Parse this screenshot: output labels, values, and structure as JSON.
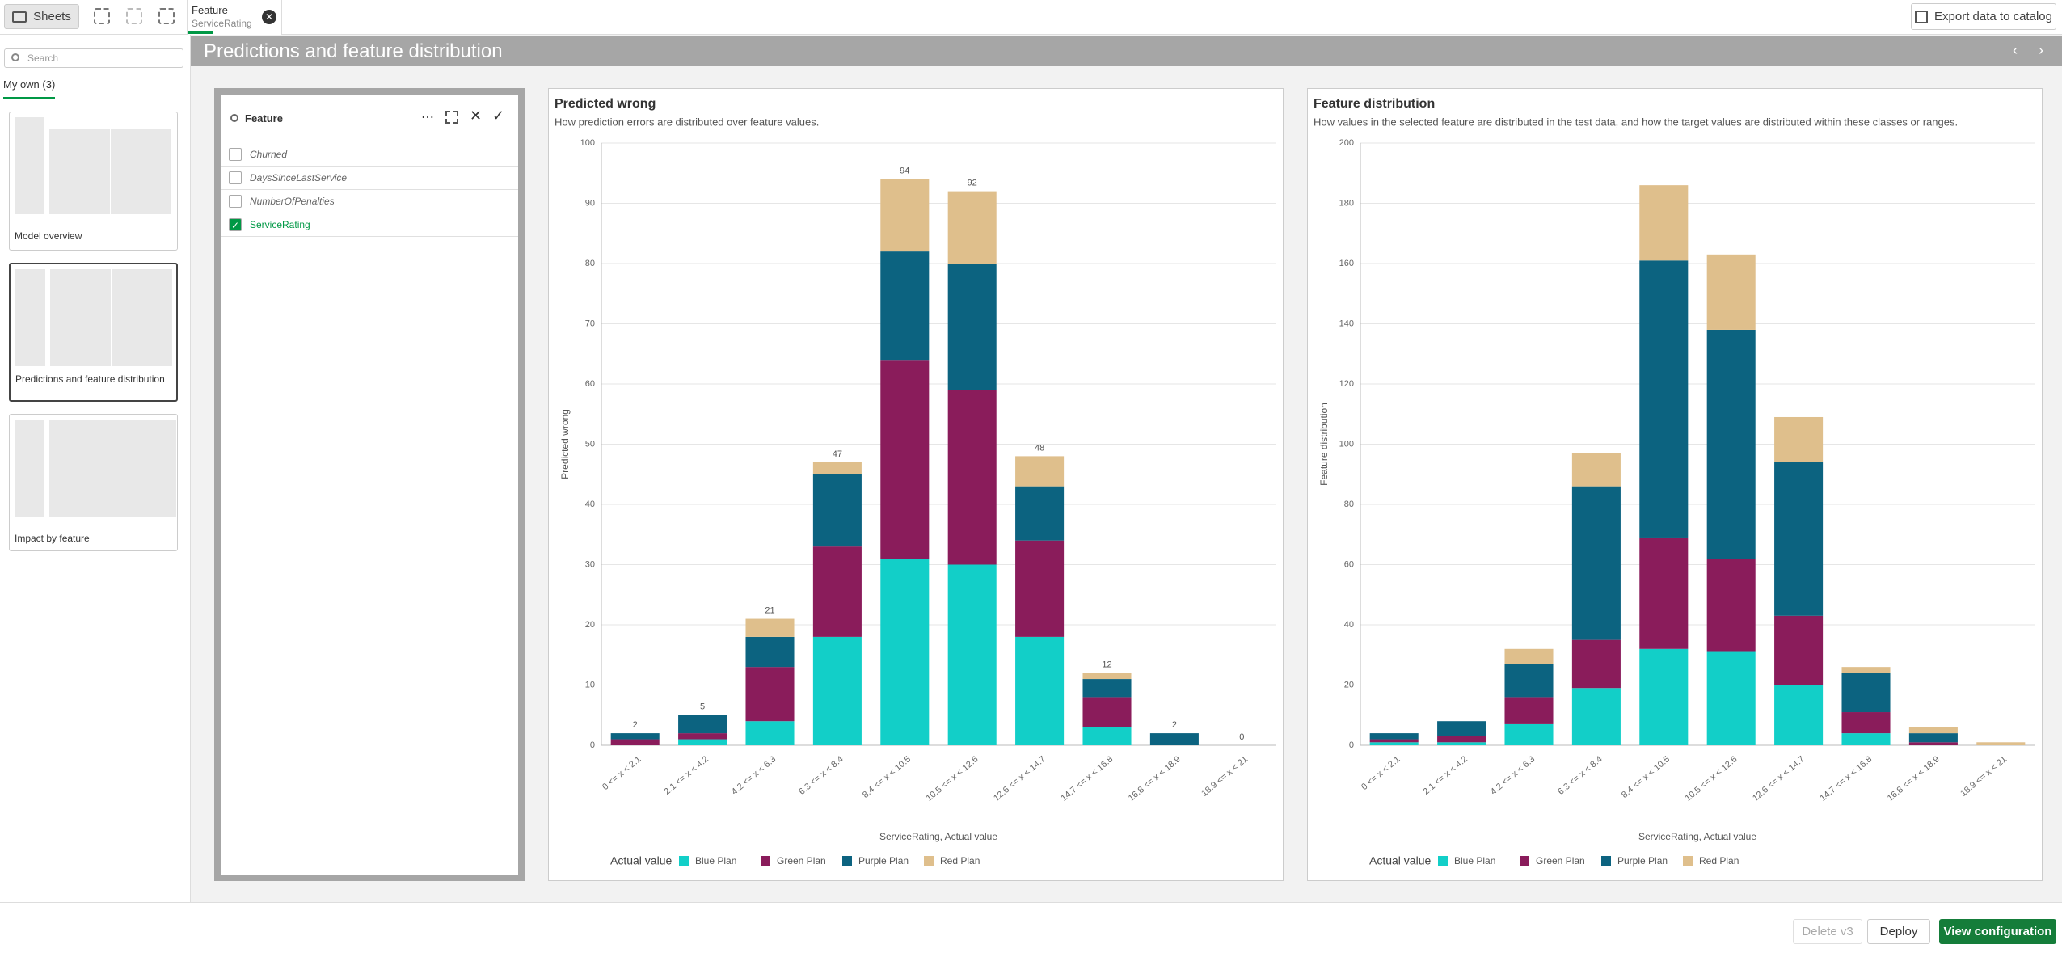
{
  "toolbar": {
    "sheets_button": "Sheets",
    "tab": {
      "title": "Feature",
      "subtitle": "ServiceRating"
    },
    "export_button": "Export data to catalog"
  },
  "sidebar": {
    "search_placeholder": "Search",
    "tab": "My own (3)",
    "sheets": [
      "Model overview",
      "Predictions and feature distribution",
      "Impact by feature"
    ]
  },
  "sheet_title": "Predictions and feature distribution",
  "filter": {
    "title": "Feature",
    "items": [
      "Churned",
      "DaysSinceLastService",
      "NumberOfPenalties",
      "ServiceRating"
    ],
    "selected_index": 3
  },
  "footer": {
    "buttons": [
      "Delete v3",
      "Deploy",
      "View configuration"
    ]
  },
  "chart_data": [
    {
      "type": "stacked_bar",
      "title": "Predicted wrong",
      "subtitle": "How prediction errors are distributed over feature values.",
      "y_label": "Predicted wrong",
      "x_label": "ServiceRating, Actual value",
      "legend_title": "Actual value",
      "legend": "bottom",
      "grid": true,
      "categories": [
        "0 <= x < 2.1",
        "2.1 <= x < 4.2",
        "4.2 <= x < 6.3",
        "6.3 <= x < 8.4",
        "8.4 <= x < 10.5",
        "10.5 <= x < 12.6",
        "12.6 <= x < 14.7",
        "14.7 <= x < 16.8",
        "16.8 <= x < 18.9",
        "18.9 <= x < 21"
      ],
      "series": [
        {
          "name": "Blue Plan",
          "color": "#12cfc8",
          "values": [
            0,
            1,
            4,
            18,
            31,
            30,
            18,
            3,
            0,
            0
          ]
        },
        {
          "name": "Green Plan",
          "color": "#8a1c5b",
          "values": [
            1,
            1,
            9,
            15,
            33,
            29,
            16,
            5,
            0,
            0
          ]
        },
        {
          "name": "Purple Plan",
          "color": "#0c6380",
          "values": [
            1,
            3,
            5,
            12,
            18,
            21,
            9,
            3,
            2,
            0
          ]
        },
        {
          "name": "Red Plan",
          "color": "#dfbf8c",
          "values": [
            0,
            0,
            3,
            2,
            12,
            12,
            5,
            1,
            0,
            0
          ]
        }
      ],
      "totals": [
        2,
        5,
        21,
        47,
        94,
        92,
        48,
        12,
        2,
        0
      ],
      "ylim": [
        0,
        100
      ],
      "yticks": [
        0,
        10,
        20,
        30,
        40,
        50,
        60,
        70,
        80,
        90,
        100
      ]
    },
    {
      "type": "stacked_bar",
      "title": "Feature distribution",
      "subtitle": "How values in the selected feature are distributed in the test data, and how the target values are distributed within these classes or ranges.",
      "y_label": "Feature distribution",
      "x_label": "ServiceRating, Actual value",
      "legend_title": "Actual value",
      "legend": "bottom",
      "grid": true,
      "categories": [
        "0 <= x < 2.1",
        "2.1 <= x < 4.2",
        "4.2 <= x < 6.3",
        "6.3 <= x < 8.4",
        "8.4 <= x < 10.5",
        "10.5 <= x < 12.6",
        "12.6 <= x < 14.7",
        "14.7 <= x < 16.8",
        "16.8 <= x < 18.9",
        "18.9 <= x < 21"
      ],
      "series": [
        {
          "name": "Blue Plan",
          "color": "#12cfc8",
          "values": [
            1,
            1,
            7,
            19,
            32,
            31,
            20,
            4,
            0,
            0
          ]
        },
        {
          "name": "Green Plan",
          "color": "#8a1c5b",
          "values": [
            1,
            2,
            9,
            16,
            37,
            31,
            23,
            7,
            1,
            0
          ]
        },
        {
          "name": "Purple Plan",
          "color": "#0c6380",
          "values": [
            2,
            5,
            11,
            51,
            92,
            76,
            51,
            13,
            3,
            0
          ]
        },
        {
          "name": "Red Plan",
          "color": "#dfbf8c",
          "values": [
            0,
            0,
            5,
            11,
            25,
            25,
            15,
            2,
            2,
            1
          ]
        }
      ],
      "ylim": [
        0,
        200
      ],
      "yticks": [
        0,
        20,
        40,
        60,
        80,
        100,
        120,
        140,
        160,
        180,
        200
      ]
    }
  ]
}
